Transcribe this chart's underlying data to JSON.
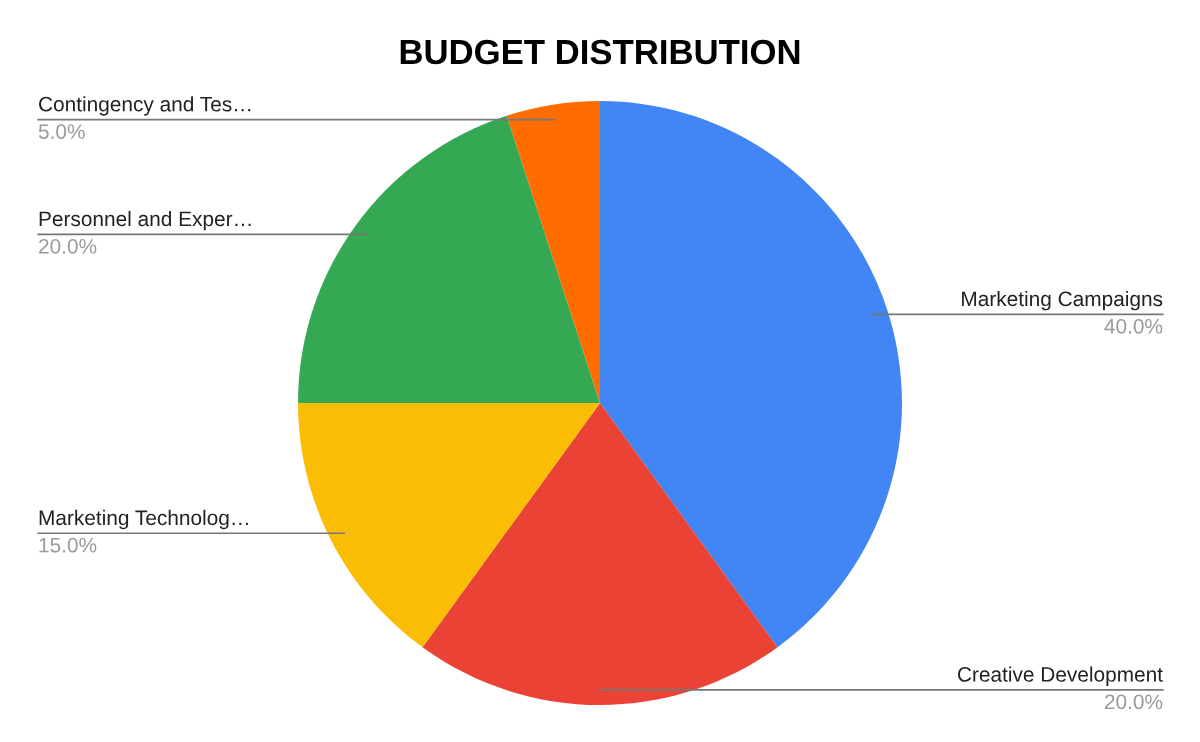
{
  "chart_data": {
    "type": "pie",
    "title": "BUDGET DISTRIBUTION",
    "categories": [
      "Marketing Campaigns",
      "Creative Development",
      "Marketing Technolog…",
      "Personnel and Exper…",
      "Contingency and Tes…"
    ],
    "values": [
      40,
      20,
      15,
      20,
      5
    ],
    "value_labels": [
      "40.0%",
      "20.0%",
      "15.0%",
      "20.0%",
      "5.0%"
    ],
    "colors": [
      "#4285f4",
      "#ea4335",
      "#fbbc04",
      "#34a853",
      "#ff6d01"
    ]
  }
}
